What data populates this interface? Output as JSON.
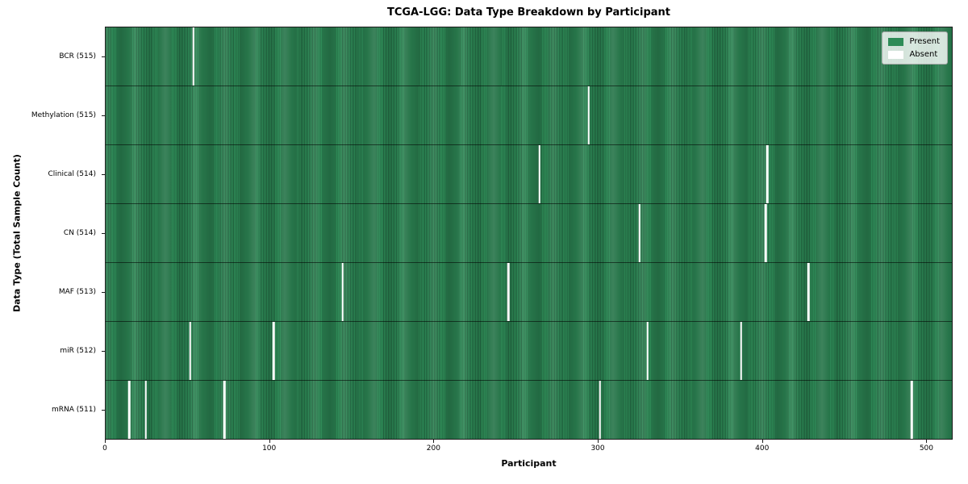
{
  "chart_data": {
    "type": "heatmap",
    "title": "TCGA-LGG: Data Type Breakdown by Participant",
    "xlabel": "Participant",
    "ylabel": "Data Type (Total Sample Count)",
    "x_ticks": [
      0,
      100,
      200,
      300,
      400,
      500
    ],
    "x_range": [
      0,
      516
    ],
    "total_participants": 516,
    "grid": false,
    "legend_position": "upper right",
    "legend": [
      {
        "label": "Present",
        "color": "#2E8B57"
      },
      {
        "label": "Absent",
        "color": "#ffffff"
      }
    ],
    "colors": {
      "present": "#2E8B57",
      "present_dark": "#1f5f3c",
      "absent": "#ffffff",
      "background": "#ffffff"
    },
    "rows": [
      {
        "label": "BCR (515)",
        "data_type": "BCR",
        "count": 515,
        "absent_participants": [
          53
        ]
      },
      {
        "label": "Methylation (515)",
        "data_type": "Methylation",
        "count": 515,
        "absent_participants": [
          294
        ]
      },
      {
        "label": "Clinical (514)",
        "data_type": "Clinical",
        "count": 514,
        "absent_participants": [
          264,
          403
        ]
      },
      {
        "label": "CN (514)",
        "data_type": "CN",
        "count": 514,
        "absent_participants": [
          325,
          402
        ]
      },
      {
        "label": "MAF (513)",
        "data_type": "MAF",
        "count": 513,
        "absent_participants": [
          144,
          245,
          428
        ]
      },
      {
        "label": "miR (512)",
        "data_type": "miR",
        "count": 512,
        "absent_participants": [
          51,
          102,
          330,
          387
        ]
      },
      {
        "label": "mRNA (511)",
        "data_type": "mRNA",
        "count": 511,
        "absent_participants": [
          14,
          24,
          72,
          301,
          491
        ]
      }
    ]
  }
}
